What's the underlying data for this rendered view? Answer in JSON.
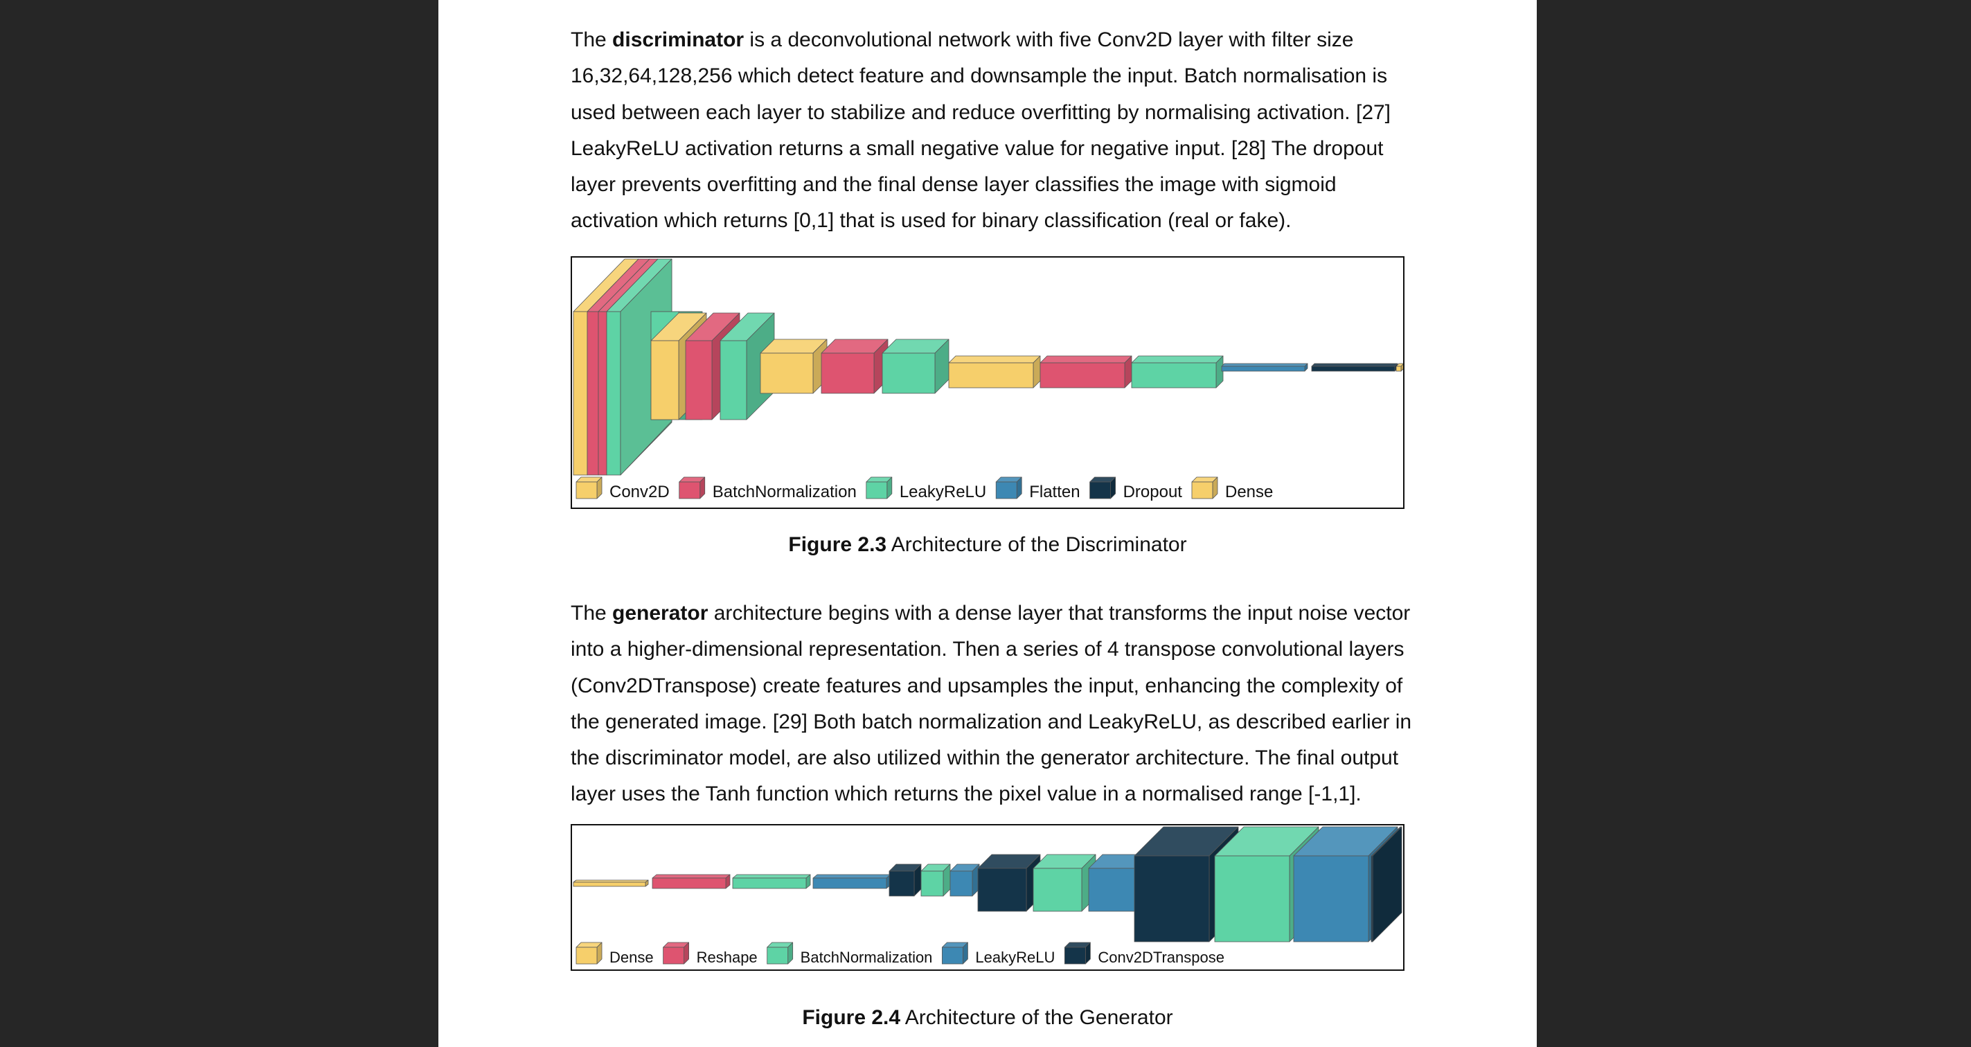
{
  "para1": {
    "lines": [
      [
        "The ",
        {
          "b": "discriminator"
        },
        " is a deconvolutional network with five Conv2D layer with filter size"
      ],
      [
        "16,32,64,128,256 which detect feature and downsample the input. Batch normalisation is"
      ],
      [
        "used between each layer to stabilize and reduce overfitting by normalising activation. [27]"
      ],
      [
        "LeakyReLU activation returns a small negative value for negative input. [28] The dropout"
      ],
      [
        "layer prevents overfitting and the final dense layer classifies the image with sigmoid"
      ],
      [
        "activation which returns [0,1] that is used for binary classification (real or fake)."
      ]
    ]
  },
  "figure1": {
    "label": "Figure 2.3",
    "title": " Architecture of the Discriminator",
    "legend": [
      {
        "name": "Conv2D",
        "color": "#F6CF6B"
      },
      {
        "name": "BatchNormalization",
        "color": "#DE5470"
      },
      {
        "name": "LeakyReLU",
        "color": "#5ED3A5"
      },
      {
        "name": "Flatten",
        "color": "#3D88B3"
      },
      {
        "name": "Dropout",
        "color": "#143449"
      },
      {
        "name": "Dense",
        "color": "#F6CF6B"
      }
    ]
  },
  "para2": {
    "lines": [
      [
        "The ",
        {
          "b": "generator"
        },
        " architecture begins with a dense layer that transforms the input noise vector"
      ],
      [
        "into a higher-dimensional representation. Then a series of 4 transpose convolutional layers"
      ],
      [
        "(Conv2DTranspose) create features and upsamples the input, enhancing the complexity of"
      ],
      [
        "the generated image. [29] Both batch normalization and LeakyReLU, as described earlier in"
      ],
      [
        "the discriminator model, are also utilized within the generator architecture. The final output"
      ],
      [
        "layer uses the Tanh function which returns the pixel value in a normalised range [-1,1]."
      ]
    ]
  },
  "figure2": {
    "label": "Figure 2.4",
    "title": " Architecture of the Generator",
    "legend": [
      {
        "name": "Dense",
        "color": "#F6CF6B"
      },
      {
        "name": "Reshape",
        "color": "#DE5470"
      },
      {
        "name": "BatchNormalization",
        "color": "#5ED3A5"
      },
      {
        "name": "LeakyReLU",
        "color": "#3D88B3"
      },
      {
        "name": "Conv2DTranspose",
        "color": "#143449"
      }
    ]
  }
}
